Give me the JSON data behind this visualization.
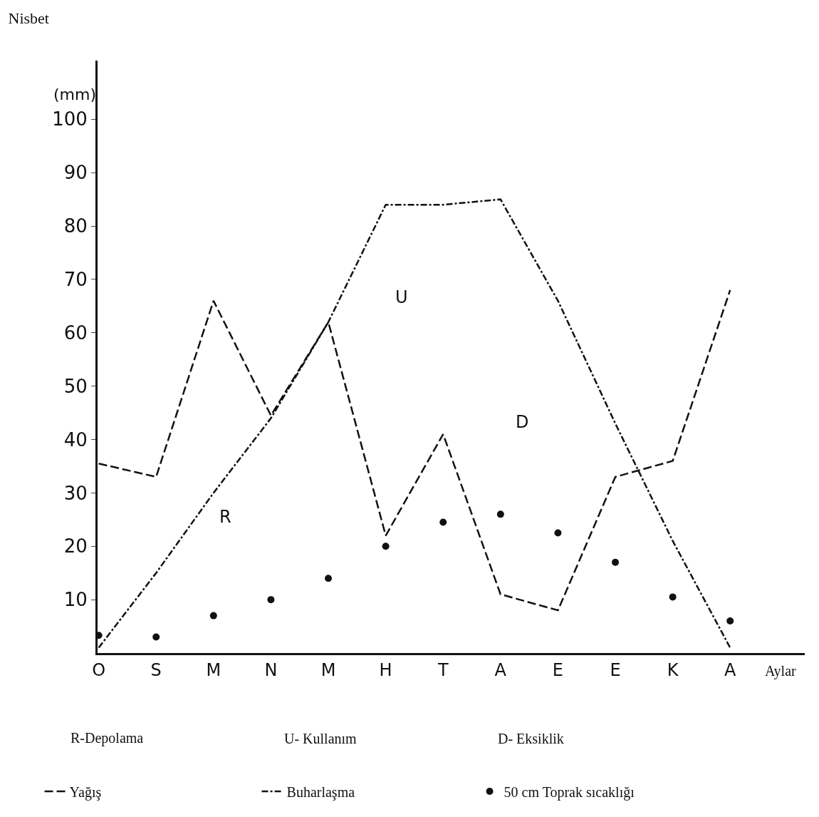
{
  "chart_data": {
    "type": "line",
    "title": "Nisbet",
    "ylabel": "(mm)",
    "xlabel": "Aylar",
    "categories": [
      "O",
      "S",
      "M",
      "N",
      "M",
      "H",
      "T",
      "A",
      "E",
      "E",
      "K",
      "A"
    ],
    "series": [
      {
        "name": "Yağış",
        "color": "#111111",
        "line_style": "dashed",
        "marker": "none",
        "values": [
          35.5,
          33,
          66,
          44.5,
          62,
          22,
          41,
          11,
          8,
          33,
          36,
          68
        ]
      },
      {
        "name": "Buharlaşma",
        "color": "#111111",
        "line_style": "dashdot",
        "marker": "none",
        "values": [
          1,
          15,
          30,
          44,
          62,
          84,
          84,
          85,
          66,
          43,
          21,
          1
        ]
      },
      {
        "name": "50 cm Toprak sıcaklığı",
        "type": "scatter",
        "color": "#111111",
        "marker": "circle",
        "values": [
          3.3,
          3,
          7,
          10,
          14,
          20,
          24.5,
          26,
          22.5,
          17,
          10.5,
          6
        ]
      }
    ],
    "ylim": [
      0,
      111
    ],
    "yticks": [
      10,
      20,
      30,
      40,
      50,
      60,
      70,
      80,
      90,
      100
    ],
    "legend": "bottom",
    "annotations": [
      "R",
      "U",
      "D",
      "R-Depolama",
      "U- Kullanım",
      "D- Eksiklik"
    ]
  }
}
